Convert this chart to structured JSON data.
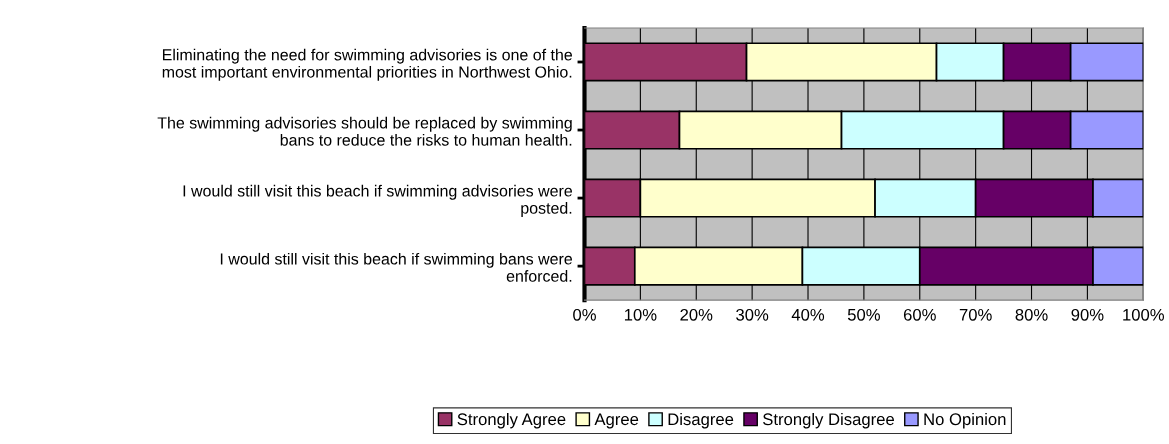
{
  "chart_data": {
    "type": "bar",
    "orientation": "horizontal",
    "stacked": true,
    "categories": [
      "Eliminating the need for swimming advisories is one of the\nmost important environmental priorities in Northwest Ohio.",
      "The swimming advisories should be replaced by swimming\nbans to reduce the risks to human health.",
      "I would still visit this beach if swimming advisories were\nposted.",
      "I would still visit this beach if swimming bans were\nenforced."
    ],
    "series": [
      {
        "name": "Strongly Agree",
        "color": "#993366",
        "values": [
          29,
          17,
          10,
          9
        ]
      },
      {
        "name": "Agree",
        "color": "#ffffcc",
        "values": [
          34,
          29,
          42,
          30
        ]
      },
      {
        "name": "Disagree",
        "color": "#ccffff",
        "values": [
          12,
          29,
          18,
          21
        ]
      },
      {
        "name": "Strongly Disagree",
        "color": "#660066",
        "values": [
          12,
          12,
          21,
          31
        ]
      },
      {
        "name": "No Opinion",
        "color": "#9999ff",
        "values": [
          13,
          13,
          9,
          9
        ]
      }
    ],
    "xlim": [
      0,
      100
    ],
    "xticks": [
      {
        "value": 0,
        "label": "0%"
      },
      {
        "value": 10,
        "label": "10%"
      },
      {
        "value": 20,
        "label": "20%"
      },
      {
        "value": 30,
        "label": "30%"
      },
      {
        "value": 40,
        "label": "40%"
      },
      {
        "value": 50,
        "label": "50%"
      },
      {
        "value": 60,
        "label": "60%"
      },
      {
        "value": 70,
        "label": "70%"
      },
      {
        "value": 80,
        "label": "80%"
      },
      {
        "value": 90,
        "label": "90%"
      },
      {
        "value": 100,
        "label": "100%"
      }
    ],
    "grid": "x",
    "legend": "bottom"
  }
}
